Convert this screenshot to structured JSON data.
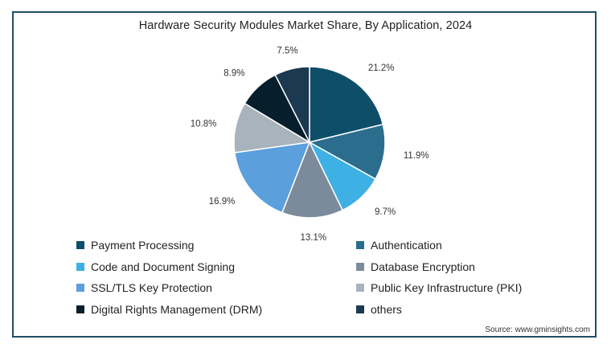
{
  "chart_data": {
    "type": "pie",
    "title": "Hardware Security Modules Market Share, By Application, 2024",
    "slices": [
      {
        "name": "Payment Processing",
        "value": 21.2,
        "label": "21.2%",
        "color": "#0f4e69"
      },
      {
        "name": "Authentication",
        "value": 11.9,
        "label": "11.9%",
        "color": "#2b6d8c"
      },
      {
        "name": "Code and Document Signing",
        "value": 9.7,
        "label": "9.7%",
        "color": "#3fb0e3"
      },
      {
        "name": "Database Encryption",
        "value": 13.1,
        "label": "13.1%",
        "color": "#7c8b9c"
      },
      {
        "name": "SSL/TLS Key Protection",
        "value": 16.9,
        "label": "16.9%",
        "color": "#5b9fdc"
      },
      {
        "name": "Public Key Infrastructure (PKI)",
        "value": 10.8,
        "label": "10.8%",
        "color": "#a9b3bc"
      },
      {
        "name": "Digital Rights Management (DRM)",
        "value": 8.9,
        "label": "8.9%",
        "color": "#071f2c"
      },
      {
        "name": "others",
        "value": 7.5,
        "label": "7.5%",
        "color": "#1b3a52"
      }
    ],
    "legend_placement": "bottom",
    "source": "Source: www.gminsights.com"
  }
}
